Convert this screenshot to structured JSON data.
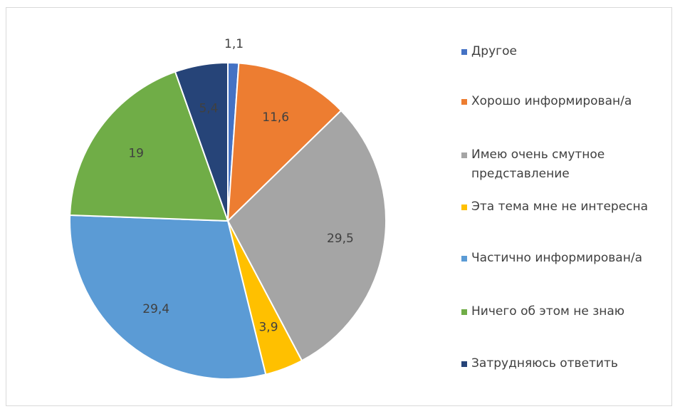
{
  "chart_data": {
    "type": "pie",
    "categories": [
      "Другое",
      "Хорошо информирован/а",
      "Имею очень смутное представление",
      "Эта тема мне не интересна",
      "Частично информирован/а",
      "Ничего об этом не знаю",
      "Затрудняюсь ответить"
    ],
    "values": [
      1.1,
      11.6,
      29.5,
      3.9,
      29.4,
      19,
      5.4
    ],
    "value_labels": [
      "1,1",
      "11,6",
      "29,5",
      "3,9",
      "29,4",
      "19",
      "5,4"
    ],
    "colors": [
      "#4472c4",
      "#ed7d31",
      "#a5a5a5",
      "#ffc000",
      "#5b9bd5",
      "#70ad47",
      "#264478"
    ],
    "legend": "right"
  }
}
